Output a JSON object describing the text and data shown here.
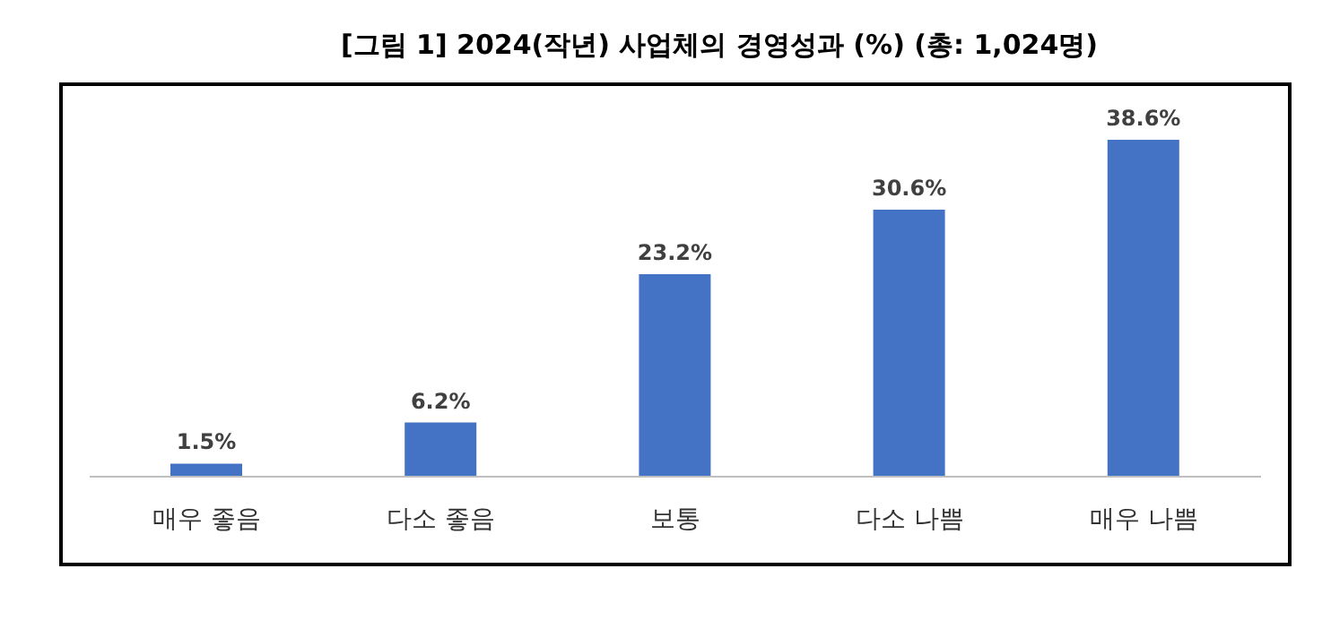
{
  "chart_data": {
    "type": "bar",
    "title": "[그림 1] 2024(작년) 사업체의 경영성과 (%) (총: 1,024명)",
    "categories": [
      "매우 좋음",
      "다소 좋음",
      "보통",
      "다소 나쁨",
      "매우 나쁨"
    ],
    "values": [
      1.5,
      6.2,
      23.2,
      30.6,
      38.6
    ],
    "value_labels": [
      "1.5%",
      "6.2%",
      "23.2%",
      "30.6%",
      "38.6%"
    ],
    "color": "#4472c4",
    "tick_labels": "x",
    "grid": false,
    "legend": false
  }
}
